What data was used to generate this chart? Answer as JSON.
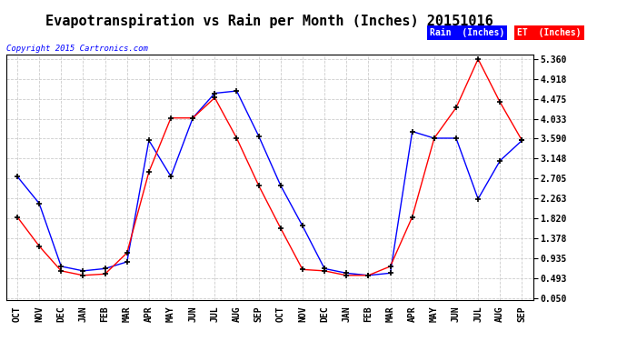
{
  "title": "Evapotranspiration vs Rain per Month (Inches) 20151016",
  "copyright": "Copyright 2015 Cartronics.com",
  "months": [
    "OCT",
    "NOV",
    "DEC",
    "JAN",
    "FEB",
    "MAR",
    "APR",
    "MAY",
    "JUN",
    "JUL",
    "AUG",
    "SEP",
    "OCT",
    "NOV",
    "DEC",
    "JAN",
    "FEB",
    "MAR",
    "APR",
    "MAY",
    "JUN",
    "JUL",
    "AUG",
    "SEP"
  ],
  "rain": [
    2.75,
    2.15,
    0.75,
    0.65,
    0.7,
    0.85,
    3.55,
    2.75,
    4.05,
    4.6,
    4.65,
    3.65,
    2.55,
    1.65,
    0.7,
    0.6,
    0.55,
    0.6,
    3.75,
    3.6,
    3.6,
    2.25,
    3.1,
    3.55
  ],
  "et": [
    1.85,
    1.2,
    0.65,
    0.55,
    0.58,
    1.05,
    2.85,
    4.05,
    4.05,
    4.5,
    3.6,
    2.55,
    1.6,
    0.68,
    0.65,
    0.55,
    0.55,
    0.75,
    1.85,
    3.6,
    4.28,
    5.36,
    4.4,
    3.55
  ],
  "yticks": [
    0.05,
    0.493,
    0.935,
    1.378,
    1.82,
    2.263,
    2.705,
    3.148,
    3.59,
    4.033,
    4.475,
    4.918,
    5.36
  ],
  "ylim_min": 0.0,
  "ylim_max": 5.46,
  "rain_color": "#0000ff",
  "et_color": "#ff0000",
  "background_color": "#ffffff",
  "grid_color": "#cccccc",
  "title_fontsize": 11,
  "legend_rain_label": "Rain  (Inches)",
  "legend_et_label": "ET  (Inches)"
}
